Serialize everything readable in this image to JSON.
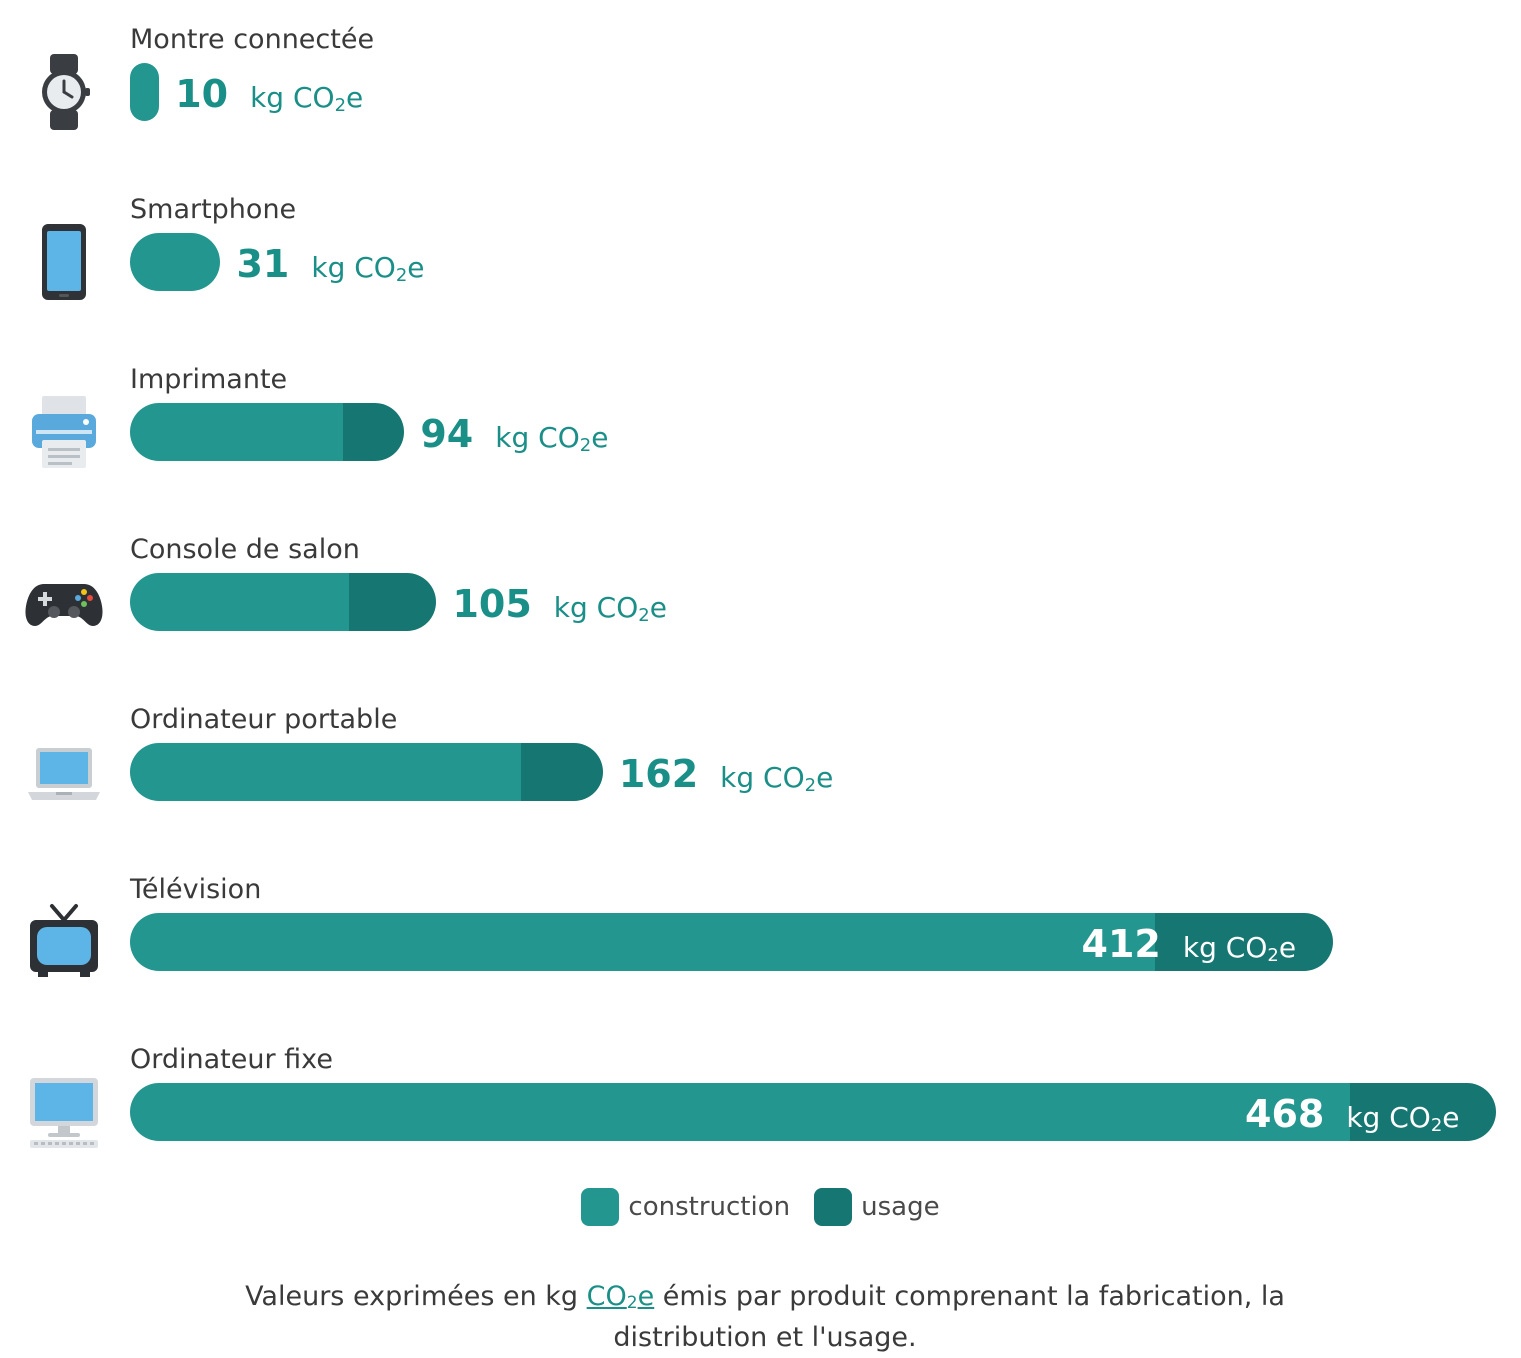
{
  "chart_data": {
    "type": "bar",
    "orientation": "horizontal",
    "stacked": true,
    "unit": "kg CO2e",
    "items": [
      {
        "label": "Montre connectée",
        "icon": "smartwatch-icon",
        "total": 10,
        "total_label": "10",
        "construction": 10,
        "usage": 0
      },
      {
        "label": "Smartphone",
        "icon": "smartphone-icon",
        "total": 31,
        "total_label": "31",
        "construction": 31,
        "usage": 0
      },
      {
        "label": "Imprimante",
        "icon": "printer-icon",
        "total": 94,
        "total_label": "94",
        "construction": 73,
        "usage": 21
      },
      {
        "label": "Console de salon",
        "icon": "gamepad-icon",
        "total": 105,
        "total_label": "105",
        "construction": 75,
        "usage": 30
      },
      {
        "label": "Ordinateur portable",
        "icon": "laptop-icon",
        "total": 162,
        "total_label": "162",
        "construction": 134,
        "usage": 28
      },
      {
        "label": "Télévision",
        "icon": "television-icon",
        "total": 412,
        "total_label": "412",
        "construction": 351,
        "usage": 61
      },
      {
        "label": "Ordinateur fixe",
        "icon": "desktop-computer-icon",
        "total": 468,
        "total_label": "468",
        "construction": 418,
        "usage": 50
      }
    ],
    "series": [
      {
        "name": "construction",
        "color": "#22968f"
      },
      {
        "name": "usage",
        "color": "#167672"
      }
    ],
    "value_color": "#1a8f88",
    "value_color_inside": "#ffffff",
    "label_color": "#3a3a3a"
  },
  "unit_parts": {
    "prefix": "kg CO",
    "sub": "2",
    "suffix": "e"
  },
  "footnote": {
    "before": "Valeurs exprimées en kg ",
    "co2_main": "CO",
    "co2_sub": "2",
    "co2_end": "e",
    "after": " émis par produit comprenant la fabrication, la distribution et l'usage."
  }
}
